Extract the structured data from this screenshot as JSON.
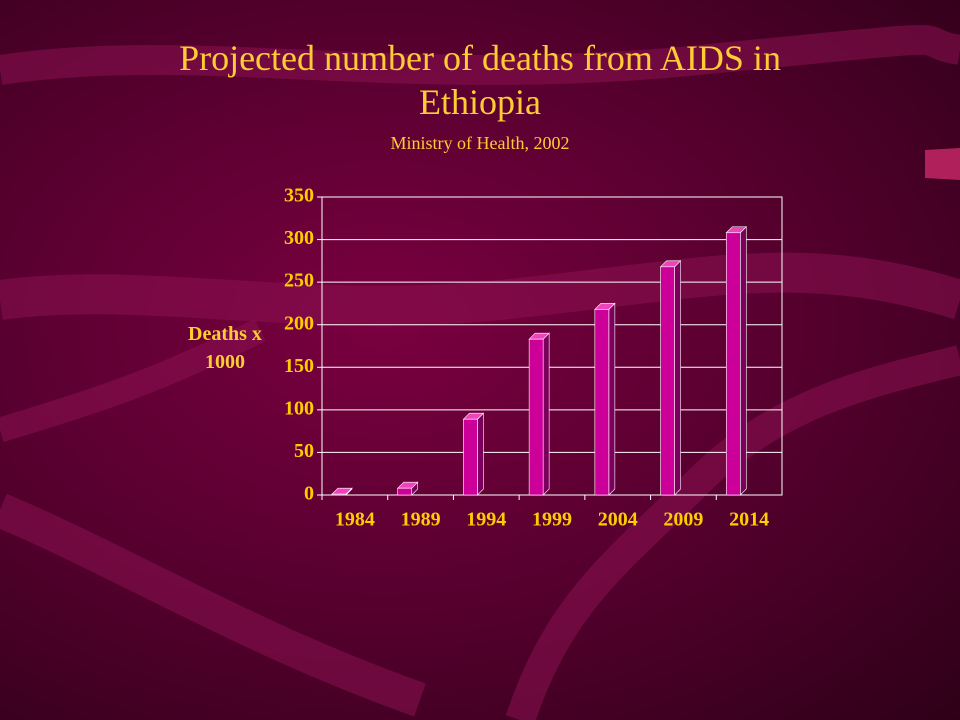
{
  "chart_data": {
    "type": "bar",
    "title": "Projected number of deaths from AIDS in Ethiopia",
    "subtitle": "Ministry of Health, 2002",
    "y_label": "Deaths x 1000",
    "categories": [
      "1984",
      "1989",
      "1994",
      "1999",
      "2004",
      "2009",
      "2014"
    ],
    "values": [
      1,
      8,
      89,
      183,
      218,
      268,
      308
    ],
    "color": "#cc0099",
    "ylim": [
      0,
      350
    ],
    "yticks": [
      0,
      50,
      100,
      150,
      200,
      250,
      300,
      350
    ],
    "grid": true
  }
}
